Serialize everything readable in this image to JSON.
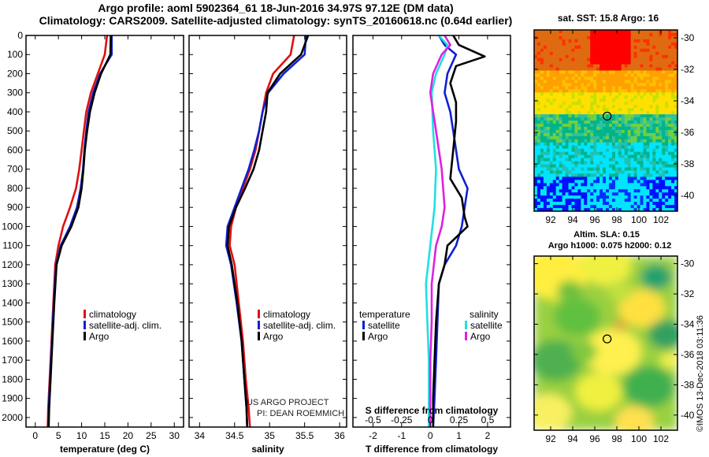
{
  "titles": {
    "line1": "Argo profile: aoml 5902364_61 18-Jun-2016 34.97S 97.12E (DM data)",
    "line2": "Climatology: CARS2009. Satellite-adjusted climatology: synTS_20160618.nc (0.64d earlier)"
  },
  "colors": {
    "climatology": "#e01010",
    "satellite": "#1020d0",
    "argo": "#000000",
    "sat_salinity": "#20e0e0",
    "salinity_diff": "#e020e0"
  },
  "legend": {
    "climatology": "climatology",
    "satellite_adj": "satellite-adj. clim.",
    "argo": "Argo",
    "temperature": "temperature",
    "salinity": "salinity",
    "satellite": "satellite"
  },
  "credits": {
    "line1": "US ARGO PROJECT",
    "line2": "PI: DEAN ROEMMICH"
  },
  "stamp": "©IMOS 13-Dec-2018 03:11:36",
  "map_titles": {
    "sst": "sat. SST: 15.8 Argo: 16",
    "sla_line1": "Altim. SLA: 0.15",
    "sla_line2": "Argo h1000: 0.075 h2000: 0.12"
  },
  "chart_data": [
    {
      "type": "line",
      "xlabel": "temperature (deg C)",
      "xlim": [
        -2,
        32
      ],
      "xticks": [
        "0",
        "5",
        "10",
        "15",
        "20",
        "25",
        "30"
      ],
      "xtick_values": [
        0,
        5,
        10,
        15,
        20,
        25,
        30
      ],
      "ylim": [
        2050,
        0
      ],
      "yticks": [
        "0",
        "100",
        "200",
        "300",
        "400",
        "500",
        "600",
        "700",
        "800",
        "900",
        "1000",
        "1100",
        "1200",
        "1300",
        "1400",
        "1500",
        "1600",
        "1700",
        "1800",
        "1900",
        "2000"
      ],
      "ytick_values": [
        0,
        100,
        200,
        300,
        400,
        500,
        600,
        700,
        800,
        900,
        1000,
        1100,
        1200,
        1300,
        1400,
        1500,
        1600,
        1700,
        1800,
        1900,
        2000
      ],
      "series": [
        {
          "name": "climatology",
          "color": "#e01010",
          "points": [
            [
              15.5,
              0
            ],
            [
              15,
              100
            ],
            [
              13.5,
              200
            ],
            [
              12,
              300
            ],
            [
              11,
              400
            ],
            [
              10.5,
              500
            ],
            [
              10,
              600
            ],
            [
              9.5,
              700
            ],
            [
              8.8,
              800
            ],
            [
              7.5,
              900
            ],
            [
              6,
              1000
            ],
            [
              5,
              1100
            ],
            [
              4.3,
              1200
            ],
            [
              3.9,
              1400
            ],
            [
              3.5,
              1600
            ],
            [
              3.1,
              1800
            ],
            [
              2.8,
              1950
            ],
            [
              2.7,
              2050
            ]
          ]
        },
        {
          "name": "satellite-adj. clim.",
          "color": "#1020d0",
          "points": [
            [
              16.5,
              0
            ],
            [
              16.5,
              100
            ],
            [
              14,
              200
            ],
            [
              12.5,
              300
            ],
            [
              11.5,
              400
            ],
            [
              11,
              500
            ],
            [
              10.6,
              600
            ],
            [
              10.3,
              700
            ],
            [
              9.8,
              800
            ],
            [
              9,
              900
            ],
            [
              7.5,
              1000
            ],
            [
              5.5,
              1100
            ],
            [
              4.5,
              1200
            ],
            [
              4,
              1400
            ],
            [
              3.6,
              1600
            ],
            [
              3.2,
              1800
            ],
            [
              2.9,
              1950
            ],
            [
              2.8,
              2050
            ]
          ]
        },
        {
          "name": "Argo",
          "color": "#000000",
          "points": [
            [
              16.3,
              0
            ],
            [
              16.2,
              100
            ],
            [
              14.2,
              200
            ],
            [
              12.8,
              300
            ],
            [
              11.8,
              400
            ],
            [
              11.2,
              500
            ],
            [
              10.7,
              600
            ],
            [
              10.4,
              700
            ],
            [
              10,
              800
            ],
            [
              9.3,
              900
            ],
            [
              7.8,
              1000
            ],
            [
              5.7,
              1100
            ],
            [
              4.6,
              1200
            ],
            [
              4.1,
              1400
            ],
            [
              3.7,
              1600
            ],
            [
              3.3,
              1800
            ],
            [
              3,
              1950
            ],
            [
              2.9,
              2050
            ]
          ]
        }
      ]
    },
    {
      "type": "line",
      "xlabel": "salinity",
      "xlim": [
        33.85,
        36.1
      ],
      "xticks": [
        "34",
        "34.5",
        "35",
        "35.5",
        "36"
      ],
      "xtick_values": [
        34,
        34.5,
        35,
        35.5,
        36
      ],
      "ylim": [
        2050,
        0
      ],
      "series": [
        {
          "name": "climatology",
          "color": "#e01010",
          "points": [
            [
              35.35,
              0
            ],
            [
              35.3,
              100
            ],
            [
              35.05,
              200
            ],
            [
              34.95,
              300
            ],
            [
              34.9,
              400
            ],
            [
              34.85,
              500
            ],
            [
              34.8,
              600
            ],
            [
              34.72,
              700
            ],
            [
              34.62,
              800
            ],
            [
              34.52,
              900
            ],
            [
              34.45,
              1000
            ],
            [
              34.43,
              1100
            ],
            [
              34.5,
              1200
            ],
            [
              34.56,
              1400
            ],
            [
              34.62,
              1600
            ],
            [
              34.66,
              1800
            ],
            [
              34.7,
              1950
            ],
            [
              34.72,
              2050
            ]
          ]
        },
        {
          "name": "satellite-adj. clim.",
          "color": "#1020d0",
          "points": [
            [
              35.52,
              0
            ],
            [
              35.5,
              100
            ],
            [
              35.2,
              200
            ],
            [
              34.98,
              300
            ],
            [
              34.9,
              400
            ],
            [
              34.85,
              500
            ],
            [
              34.78,
              600
            ],
            [
              34.7,
              700
            ],
            [
              34.6,
              800
            ],
            [
              34.5,
              900
            ],
            [
              34.4,
              1000
            ],
            [
              34.38,
              1100
            ],
            [
              34.45,
              1200
            ],
            [
              34.53,
              1400
            ],
            [
              34.6,
              1600
            ],
            [
              34.64,
              1800
            ],
            [
              34.67,
              1950
            ],
            [
              34.68,
              2050
            ]
          ]
        },
        {
          "name": "Argo",
          "color": "#000000",
          "points": [
            [
              35.55,
              0
            ],
            [
              35.45,
              100
            ],
            [
              35.15,
              200
            ],
            [
              34.97,
              300
            ],
            [
              34.95,
              400
            ],
            [
              34.9,
              500
            ],
            [
              34.85,
              600
            ],
            [
              34.77,
              700
            ],
            [
              34.65,
              800
            ],
            [
              34.52,
              900
            ],
            [
              34.42,
              1000
            ],
            [
              34.4,
              1100
            ],
            [
              34.46,
              1200
            ],
            [
              34.54,
              1400
            ],
            [
              34.6,
              1600
            ],
            [
              34.64,
              1800
            ],
            [
              34.67,
              1950
            ],
            [
              34.68,
              2050
            ]
          ]
        }
      ]
    },
    {
      "type": "line",
      "xlabel": "T difference from climatology",
      "xlim": [
        -2.7,
        2.8
      ],
      "xticks": [
        "-2",
        "-1",
        "0",
        "1",
        "2"
      ],
      "xtick_values": [
        -2,
        -1,
        0,
        1,
        2
      ],
      "top_axis_label": "S difference from climatology",
      "top_xticks": [
        "-0.5",
        "-0.25",
        "0",
        "0.25",
        "0.5"
      ],
      "ylim": [
        2050,
        0
      ],
      "series": [
        {
          "name": "T satellite",
          "color": "#1020d0",
          "points": [
            [
              0.3,
              0
            ],
            [
              0.5,
              50
            ],
            [
              0.9,
              100
            ],
            [
              0.6,
              200
            ],
            [
              0.5,
              300
            ],
            [
              0.7,
              400
            ],
            [
              0.8,
              500
            ],
            [
              0.9,
              600
            ],
            [
              1,
              700
            ],
            [
              1.3,
              800
            ],
            [
              1.2,
              900
            ],
            [
              1.1,
              1000
            ],
            [
              0.9,
              1100
            ],
            [
              0.5,
              1200
            ],
            [
              0.3,
              1300
            ],
            [
              0.25,
              1500
            ],
            [
              0.2,
              1700
            ],
            [
              0.15,
              1900
            ],
            [
              0.1,
              2050
            ]
          ]
        },
        {
          "name": "T Argo",
          "color": "#000000",
          "points": [
            [
              0.8,
              0
            ],
            [
              1,
              50
            ],
            [
              1.9,
              110
            ],
            [
              0.9,
              160
            ],
            [
              0.7,
              250
            ],
            [
              0.9,
              350
            ],
            [
              0.9,
              450
            ],
            [
              0.8,
              600
            ],
            [
              0.7,
              750
            ],
            [
              1.1,
              850
            ],
            [
              1.2,
              950
            ],
            [
              1.3,
              1000
            ],
            [
              0.6,
              1100
            ],
            [
              0.5,
              1200
            ],
            [
              0.3,
              1300
            ],
            [
              0.2,
              1500
            ],
            [
              0.15,
              1700
            ],
            [
              0.1,
              1900
            ],
            [
              0.1,
              2050
            ]
          ]
        },
        {
          "name": "S satellite",
          "color": "#20e0e0",
          "points": [
            [
              0.3,
              0
            ],
            [
              0.6,
              50
            ],
            [
              0.5,
              100
            ],
            [
              0.2,
              200
            ],
            [
              0.05,
              300
            ],
            [
              0.1,
              500
            ],
            [
              0.2,
              700
            ],
            [
              0.15,
              900
            ],
            [
              0,
              1100
            ],
            [
              -0.15,
              1300
            ],
            [
              -0.1,
              1500
            ],
            [
              -0.05,
              1700
            ],
            [
              -0.05,
              1900
            ],
            [
              -0.05,
              2050
            ]
          ]
        },
        {
          "name": "S Argo",
          "color": "#e020e0",
          "points": [
            [
              0.5,
              0
            ],
            [
              0.7,
              50
            ],
            [
              0.4,
              100
            ],
            [
              0.1,
              200
            ],
            [
              0,
              300
            ],
            [
              0.2,
              500
            ],
            [
              0.4,
              700
            ],
            [
              0.5,
              900
            ],
            [
              0.4,
              1000
            ],
            [
              0.2,
              1100
            ],
            [
              0.05,
              1300
            ],
            [
              0.05,
              1500
            ],
            [
              0,
              1700
            ],
            [
              0,
              1900
            ],
            [
              0,
              2050
            ]
          ]
        }
      ]
    },
    {
      "type": "heatmap",
      "title": "sat. SST: 15.8 Argo: 16",
      "xlim": [
        90.5,
        103.5
      ],
      "ylim": [
        -41,
        -29.5
      ],
      "xticks": [
        "92",
        "94",
        "96",
        "98",
        "100",
        "102"
      ],
      "xtick_values": [
        92,
        94,
        96,
        98,
        100,
        102
      ],
      "yticks": [
        "-30",
        "-32",
        "-34",
        "-36",
        "-38",
        "-40"
      ],
      "ytick_values": [
        -30,
        -32,
        -34,
        -36,
        -38,
        -40
      ],
      "marker": [
        97.12,
        -34.97
      ]
    },
    {
      "type": "heatmap",
      "title": "Altim. SLA: 0.15",
      "xlim": [
        90.5,
        103.5
      ],
      "ylim": [
        -41,
        -29.5
      ],
      "xticks": [
        "92",
        "94",
        "96",
        "98",
        "100",
        "102"
      ],
      "xtick_values": [
        92,
        94,
        96,
        98,
        100,
        102
      ],
      "yticks": [
        "-30",
        "-32",
        "-34",
        "-36",
        "-38",
        "-40"
      ],
      "ytick_values": [
        -30,
        -32,
        -34,
        -36,
        -38,
        -40
      ],
      "marker": [
        97.12,
        -34.97
      ]
    }
  ]
}
